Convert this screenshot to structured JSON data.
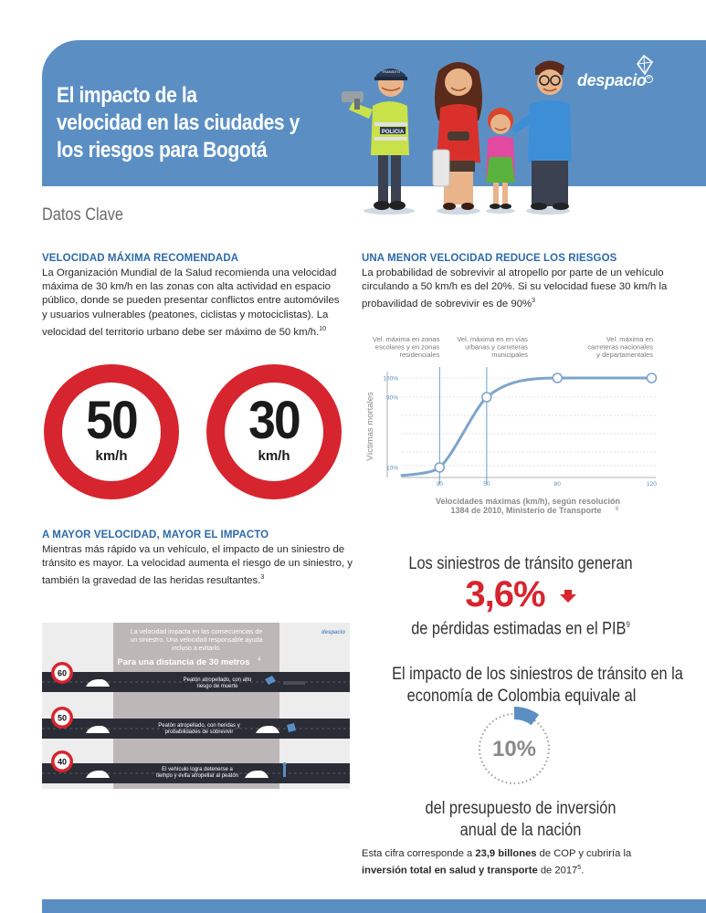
{
  "header": {
    "title_lines": [
      "El impacto de la",
      "velocidad en las ciudades  y",
      "los riesgos para Bogotá"
    ],
    "brand": "despacio",
    "police_badge": "POLICIA",
    "police_cap": "TRANSITO",
    "color": "#5b8fc3"
  },
  "datos_clave": "Datos Clave",
  "velocidad_maxima": {
    "heading": "VELOCIDAD MÁXIMA RECOMENDADA",
    "lines": [
      "La Organización Mundial de la Salud recomienda una velocidad",
      "máxima de 30 km/h en las zonas con alta actividad en espacio",
      "público, donde se pueden presentar conflictos entre automóviles",
      "y usuarios vulnerables (peatones, ciclistas y motociclistas). La",
      "velocidad del territorio urbano debe ser máximo de 50 km/h."
    ],
    "footnote": "10"
  },
  "signs": [
    {
      "value": "50",
      "unit": "km/h"
    },
    {
      "value": "30",
      "unit": "km/h"
    }
  ],
  "menor_velocidad": {
    "heading": "UNA MENOR VELOCIDAD REDUCE LOS RIESGOS",
    "lines": [
      "La probabilidad de sobrevivir al atropello por parte de un vehículo",
      "circulando a 50 km/h es del 20%. Si su velocidad fuese 30 km/h la",
      "probavilidad de sobrevivir es de 90%"
    ],
    "footnote": "3"
  },
  "chart_data": {
    "type": "line",
    "ylabel": "Víctimas mortales",
    "xlabel_line1": "Velocidades máximas (km/h), según resolución",
    "xlabel_line2": "1384 de 2010, Ministerio de Transporte",
    "xlabel_footnote": "6",
    "x_ticks": [
      "30",
      "50",
      "80",
      "120"
    ],
    "y_ticks": [
      "100%",
      "80%",
      "10%"
    ],
    "points": [
      {
        "x": 30,
        "y": 10
      },
      {
        "x": 50,
        "y": 80
      },
      {
        "x": 80,
        "y": 100
      },
      {
        "x": 120,
        "y": 100
      }
    ],
    "annotations": [
      {
        "lines": [
          "Vel. máxima en zonas",
          "escolares y en zonas",
          "residenciales"
        ],
        "x": 30
      },
      {
        "lines": [
          "Vel. máxima en en vías",
          "urbanas y carreteras",
          "municipales"
        ],
        "x": 50
      },
      {
        "lines": [
          "Vel. máxima en",
          "carreteras nacionales",
          "y departamentales"
        ],
        "x": 120
      }
    ],
    "line_color": "#7fa4cc"
  },
  "mayor_velocidad": {
    "heading": "A MAYOR VELOCIDAD, MAYOR EL IMPACTO",
    "lines": [
      "Mientras más rápido va un vehículo, el impacto de un siniestro de",
      "tránsito es mayor. La velocidad aumenta el riesgo de un siniestro, y",
      "también la gravedad de las heridas resultantes."
    ],
    "footnote": "3"
  },
  "infografia": {
    "intro": [
      "La velocidad impacta en las consecuencias de",
      "un siniestro. Una velocidad responsable ayuda",
      "incluso a evitarlo."
    ],
    "distance": "Para una distancia de 30 metros",
    "distance_footnote": "4",
    "rows": [
      {
        "speed": "60",
        "lines": [
          "Peatón atropellado, con alto",
          "riesgo de muerte"
        ]
      },
      {
        "speed": "50",
        "lines": [
          "Peatón atropellado, con heridas y",
          "probabilidades de sobrevivir"
        ]
      },
      {
        "speed": "40",
        "lines": [
          "El vehículo logra detenerse a",
          "tiempo y evita atropellar al peatón"
        ]
      }
    ],
    "logo": "despacio"
  },
  "pib": {
    "line1": "Los siniestros de tránsito generan",
    "value": "3,6%",
    "line2": "de pérdidas estimadas en el PIB",
    "footnote": "9",
    "accent": "#d7252f"
  },
  "economia": {
    "line1": "El impacto de los siniestros de tránsito en la",
    "line2": "economía de Colombia equivale al",
    "value": "10%",
    "share": 10,
    "line3": "del presupuesto de inversión",
    "line4": "anual de la nación"
  },
  "note": {
    "t1": "Esta cifra corresponde a ",
    "b1": "23,9 billones",
    "t2": " de COP y cubriría la",
    "b2": "inversión total en salud y transporte",
    "t3": " de 2017",
    "footnote": "5",
    "end": "."
  }
}
